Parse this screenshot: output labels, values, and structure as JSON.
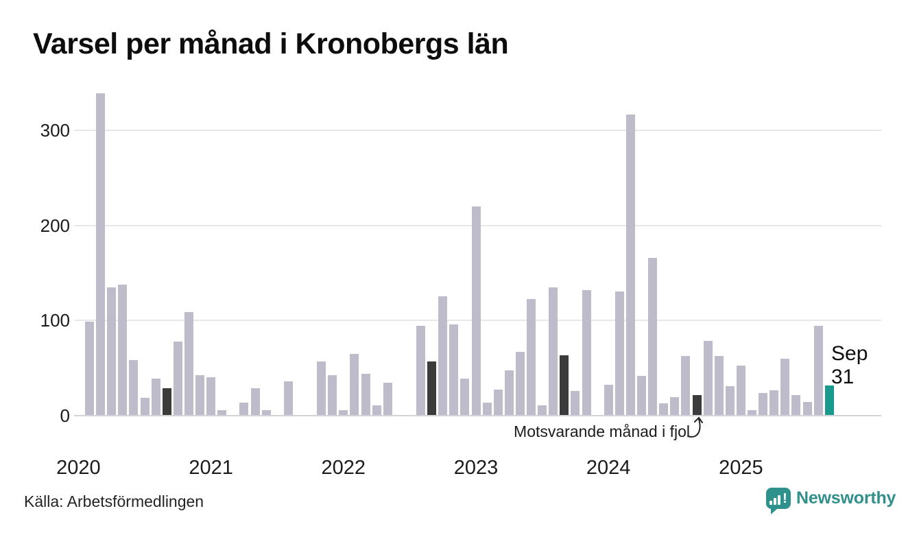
{
  "title": "Varsel per månad i Kronobergs län",
  "annotation": "Motsvarande månad i fjol",
  "point_label": {
    "line1": "Sep",
    "line2": "31"
  },
  "footer": {
    "source": "Källa: Arbetsförmedlingen",
    "brand": "Newsworthy"
  },
  "colors": {
    "bar_default": "#bebccb",
    "bar_last_year": "#3b3b3b",
    "bar_current": "#1a9a8c",
    "gridline": "#e7e7ea",
    "baseline": "#d3d3d8",
    "text": "#111111",
    "brand_teal": "#2e918b"
  },
  "chart_data": {
    "type": "bar",
    "title": "Varsel per månad i Kronobergs län",
    "xlabel": "",
    "ylabel": "",
    "ylim": [
      0,
      350
    ],
    "yticks": [
      0,
      100,
      200,
      300
    ],
    "grid": "horizontal",
    "start_month": "2020-02",
    "end_month": "2025-09",
    "year_labels": [
      {
        "label": "2020",
        "jan_index": -1
      },
      {
        "label": "2021",
        "jan_index": 11
      },
      {
        "label": "2022",
        "jan_index": 23
      },
      {
        "label": "2023",
        "jan_index": 35
      },
      {
        "label": "2024",
        "jan_index": 47
      },
      {
        "label": "2025",
        "jan_index": 59
      }
    ],
    "bars": [
      {
        "month": "2020-02",
        "value": 98,
        "kind": "normal"
      },
      {
        "month": "2020-03",
        "value": 338,
        "kind": "normal"
      },
      {
        "month": "2020-04",
        "value": 134,
        "kind": "normal"
      },
      {
        "month": "2020-05",
        "value": 137,
        "kind": "normal"
      },
      {
        "month": "2020-06",
        "value": 58,
        "kind": "normal"
      },
      {
        "month": "2020-07",
        "value": 18,
        "kind": "normal"
      },
      {
        "month": "2020-08",
        "value": 38,
        "kind": "normal"
      },
      {
        "month": "2020-09",
        "value": 28,
        "kind": "lastyear"
      },
      {
        "month": "2020-10",
        "value": 77,
        "kind": "normal"
      },
      {
        "month": "2020-11",
        "value": 108,
        "kind": "normal"
      },
      {
        "month": "2020-12",
        "value": 42,
        "kind": "normal"
      },
      {
        "month": "2021-01",
        "value": 40,
        "kind": "normal"
      },
      {
        "month": "2021-02",
        "value": 5,
        "kind": "normal"
      },
      {
        "month": "2021-03",
        "value": 0,
        "kind": "normal"
      },
      {
        "month": "2021-04",
        "value": 13,
        "kind": "normal"
      },
      {
        "month": "2021-05",
        "value": 28,
        "kind": "normal"
      },
      {
        "month": "2021-06",
        "value": 5,
        "kind": "normal"
      },
      {
        "month": "2021-07",
        "value": 0,
        "kind": "normal"
      },
      {
        "month": "2021-08",
        "value": 35,
        "kind": "normal"
      },
      {
        "month": "2021-09",
        "value": 0,
        "kind": "lastyear"
      },
      {
        "month": "2021-10",
        "value": 0,
        "kind": "normal"
      },
      {
        "month": "2021-11",
        "value": 56,
        "kind": "normal"
      },
      {
        "month": "2021-12",
        "value": 42,
        "kind": "normal"
      },
      {
        "month": "2022-01",
        "value": 5,
        "kind": "normal"
      },
      {
        "month": "2022-02",
        "value": 64,
        "kind": "normal"
      },
      {
        "month": "2022-03",
        "value": 43,
        "kind": "normal"
      },
      {
        "month": "2022-04",
        "value": 10,
        "kind": "normal"
      },
      {
        "month": "2022-05",
        "value": 34,
        "kind": "normal"
      },
      {
        "month": "2022-06",
        "value": 0,
        "kind": "normal"
      },
      {
        "month": "2022-07",
        "value": 0,
        "kind": "normal"
      },
      {
        "month": "2022-08",
        "value": 94,
        "kind": "normal"
      },
      {
        "month": "2022-09",
        "value": 56,
        "kind": "lastyear"
      },
      {
        "month": "2022-10",
        "value": 125,
        "kind": "normal"
      },
      {
        "month": "2022-11",
        "value": 95,
        "kind": "normal"
      },
      {
        "month": "2022-12",
        "value": 38,
        "kind": "normal"
      },
      {
        "month": "2023-01",
        "value": 219,
        "kind": "normal"
      },
      {
        "month": "2023-02",
        "value": 13,
        "kind": "normal"
      },
      {
        "month": "2023-03",
        "value": 27,
        "kind": "normal"
      },
      {
        "month": "2023-04",
        "value": 47,
        "kind": "normal"
      },
      {
        "month": "2023-05",
        "value": 66,
        "kind": "normal"
      },
      {
        "month": "2023-06",
        "value": 122,
        "kind": "normal"
      },
      {
        "month": "2023-07",
        "value": 10,
        "kind": "normal"
      },
      {
        "month": "2023-08",
        "value": 134,
        "kind": "normal"
      },
      {
        "month": "2023-09",
        "value": 63,
        "kind": "lastyear"
      },
      {
        "month": "2023-10",
        "value": 25,
        "kind": "normal"
      },
      {
        "month": "2023-11",
        "value": 131,
        "kind": "normal"
      },
      {
        "month": "2023-12",
        "value": 0,
        "kind": "normal"
      },
      {
        "month": "2024-01",
        "value": 32,
        "kind": "normal"
      },
      {
        "month": "2024-02",
        "value": 130,
        "kind": "normal"
      },
      {
        "month": "2024-03",
        "value": 316,
        "kind": "normal"
      },
      {
        "month": "2024-04",
        "value": 41,
        "kind": "normal"
      },
      {
        "month": "2024-05",
        "value": 165,
        "kind": "normal"
      },
      {
        "month": "2024-06",
        "value": 12,
        "kind": "normal"
      },
      {
        "month": "2024-07",
        "value": 19,
        "kind": "normal"
      },
      {
        "month": "2024-08",
        "value": 62,
        "kind": "normal"
      },
      {
        "month": "2024-09",
        "value": 21,
        "kind": "lastyear"
      },
      {
        "month": "2024-10",
        "value": 78,
        "kind": "normal"
      },
      {
        "month": "2024-11",
        "value": 62,
        "kind": "normal"
      },
      {
        "month": "2024-12",
        "value": 30,
        "kind": "normal"
      },
      {
        "month": "2025-01",
        "value": 52,
        "kind": "normal"
      },
      {
        "month": "2025-02",
        "value": 5,
        "kind": "normal"
      },
      {
        "month": "2025-03",
        "value": 23,
        "kind": "normal"
      },
      {
        "month": "2025-04",
        "value": 26,
        "kind": "normal"
      },
      {
        "month": "2025-05",
        "value": 59,
        "kind": "normal"
      },
      {
        "month": "2025-06",
        "value": 21,
        "kind": "normal"
      },
      {
        "month": "2025-07",
        "value": 14,
        "kind": "normal"
      },
      {
        "month": "2025-08",
        "value": 94,
        "kind": "normal"
      },
      {
        "month": "2025-09",
        "value": 31,
        "kind": "current"
      }
    ]
  }
}
